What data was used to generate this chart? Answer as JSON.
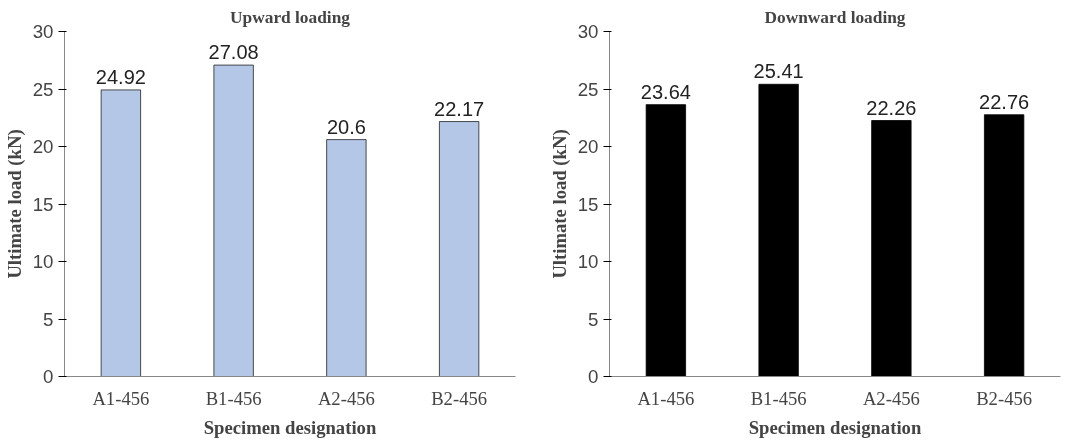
{
  "chart_data": [
    {
      "type": "bar",
      "title": "Upward loading",
      "xlabel": "Specimen designation",
      "ylabel": "Ultimate load (kN)",
      "categories": [
        "A1-456",
        "B1-456",
        "A2-456",
        "B2-456"
      ],
      "values": [
        24.92,
        27.08,
        20.6,
        22.17
      ],
      "color": "#b4c7e7",
      "ylim": [
        0,
        30
      ],
      "yticks": [
        0,
        5,
        10,
        15,
        20,
        25,
        30
      ],
      "data_labels": true
    },
    {
      "type": "bar",
      "title": "Downward loading",
      "xlabel": "Specimen designation",
      "ylabel": "Ultimate load (kN)",
      "categories": [
        "A1-456",
        "B1-456",
        "A2-456",
        "B2-456"
      ],
      "values": [
        23.64,
        25.41,
        22.26,
        22.76
      ],
      "color": "#000000",
      "ylim": [
        0,
        30
      ],
      "yticks": [
        0,
        5,
        10,
        15,
        20,
        25,
        30
      ],
      "data_labels": true
    }
  ]
}
